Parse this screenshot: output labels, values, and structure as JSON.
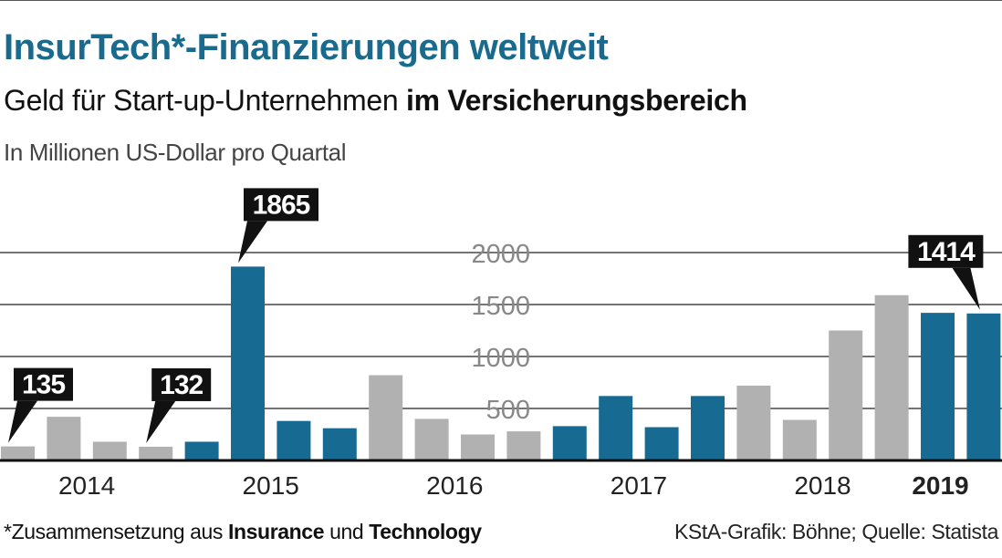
{
  "header": {
    "title": "InsurTech*-Finanzierungen weltweit",
    "subtitle_regular": "Geld für Start-up-Unternehmen ",
    "subtitle_bold": "im Versicherungsbereich",
    "unit": "In Millionen US-Dollar pro Quartal"
  },
  "footer": {
    "note_star": "*",
    "note_1": "Zusammensetzung aus ",
    "note_insurance": "Insurance",
    "note_2": " und ",
    "note_technology": "Technology",
    "source": "KStA-Grafik: Böhne; Quelle: Statista"
  },
  "colors": {
    "blue": "#176a91",
    "gray": "#b1b1b1",
    "title": "#1a6a8e"
  },
  "chart_data": {
    "type": "bar",
    "title": "InsurTech*-Finanzierungen weltweit",
    "ylabel": "In Millionen US-Dollar pro Quartal",
    "ylim": [
      0,
      2000
    ],
    "yticks": [
      500,
      1000,
      1500,
      2000
    ],
    "grid": true,
    "bar_colors": [
      "gray",
      "gray",
      "gray",
      "gray",
      "blue",
      "blue",
      "blue",
      "blue",
      "gray",
      "gray",
      "gray",
      "gray",
      "blue",
      "blue",
      "blue",
      "blue",
      "gray",
      "gray",
      "gray",
      "gray",
      "blue",
      "blue"
    ],
    "values": [
      135,
      420,
      180,
      132,
      180,
      1865,
      380,
      310,
      820,
      400,
      250,
      280,
      330,
      620,
      320,
      620,
      720,
      390,
      1250,
      1590,
      1420,
      1414
    ],
    "year_labels": [
      "2014",
      "2015",
      "2016",
      "2017",
      "2018",
      "2019"
    ],
    "year_label_bold": [
      false,
      false,
      false,
      false,
      false,
      true
    ],
    "callouts": [
      {
        "bar": 0,
        "label": "135"
      },
      {
        "bar": 3,
        "label": "132"
      },
      {
        "bar": 5,
        "label": "1865"
      },
      {
        "bar": 21,
        "label": "1414"
      }
    ]
  }
}
